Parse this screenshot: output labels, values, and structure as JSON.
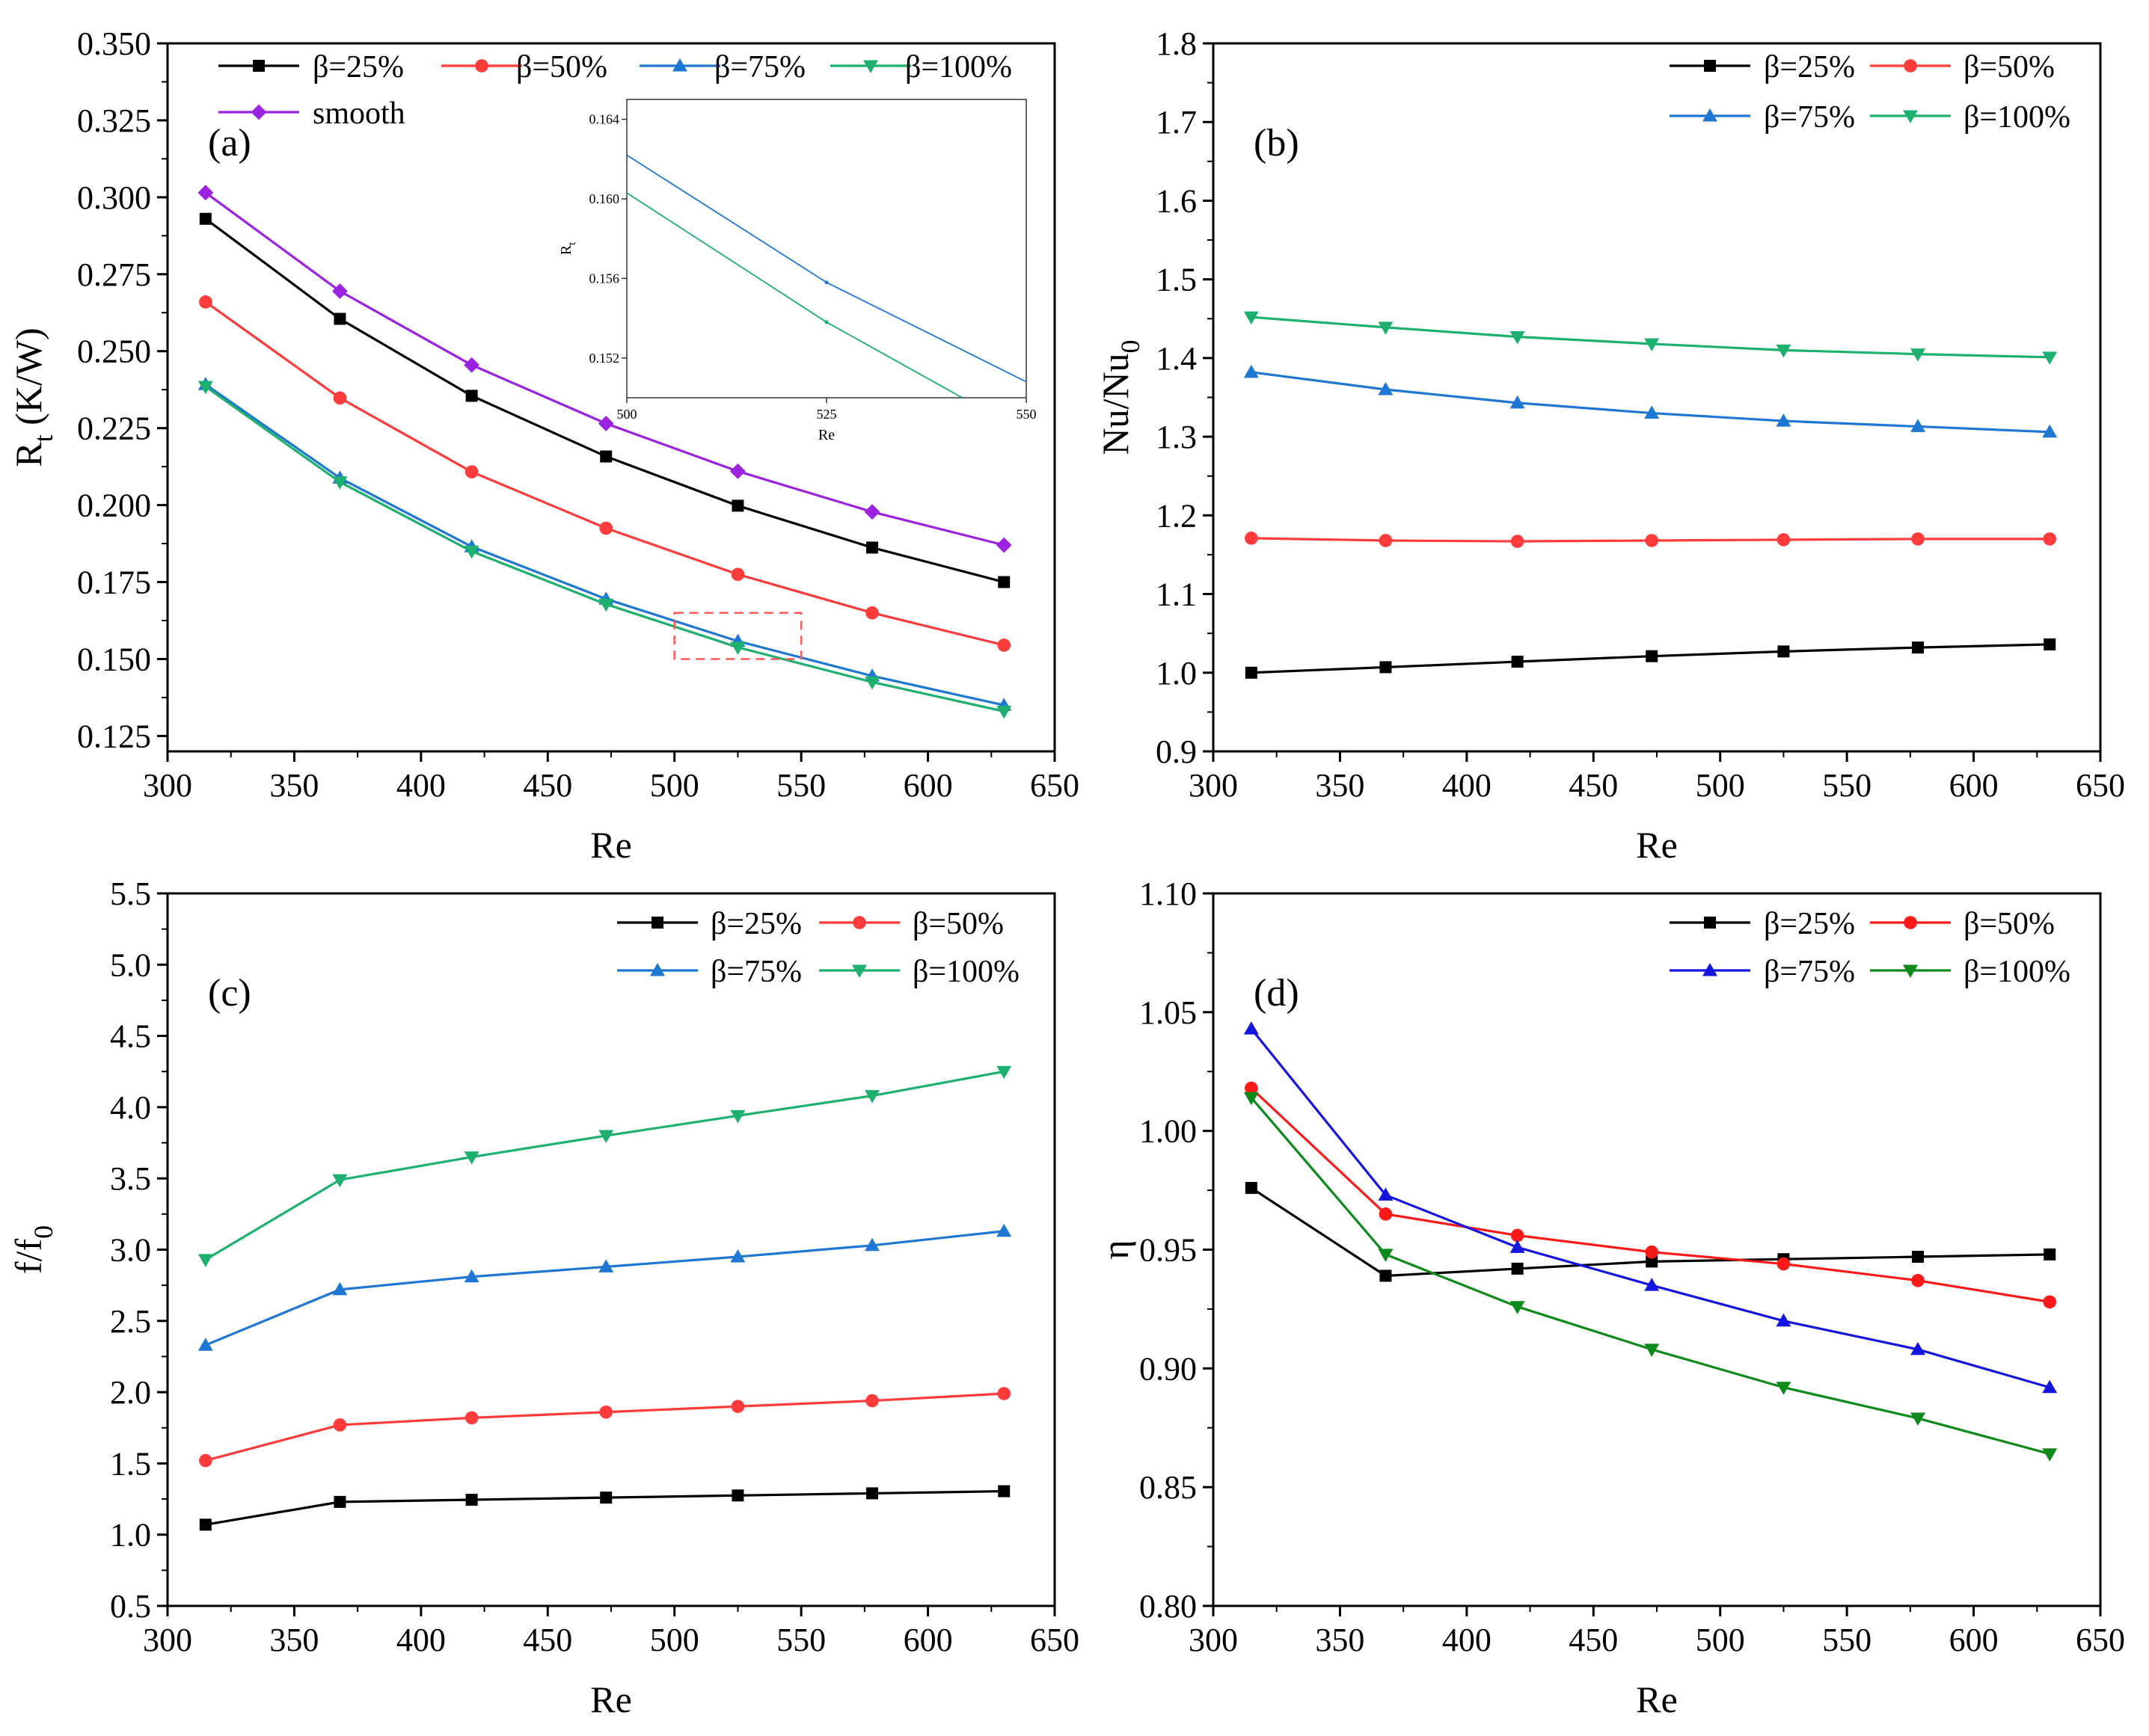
{
  "figure": {
    "charts": [
      {
        "id": "a",
        "type": "line",
        "panel_label": "(a)",
        "xlabel": "Re",
        "ylabel": "R_t (K/W)",
        "ylabel_main": "R",
        "ylabel_sub": "t",
        "ylabel_rest": " (K/W)",
        "xlim": [
          300,
          650
        ],
        "ylim": [
          0.12,
          0.35
        ],
        "xticks": [
          300,
          350,
          400,
          450,
          500,
          550,
          600,
          650
        ],
        "xtick_labels": [
          "300",
          "350",
          "400",
          "450",
          "500",
          "550",
          "600",
          "650"
        ],
        "yticks": [
          0.125,
          0.15,
          0.175,
          0.2,
          0.225,
          0.25,
          0.275,
          0.3,
          0.325,
          0.35
        ],
        "ytick_labels": [
          "0.125",
          "0.150",
          "0.175",
          "0.200",
          "0.225",
          "0.250",
          "0.275",
          "0.300",
          "0.325",
          "0.350"
        ],
        "x": [
          315,
          368,
          420,
          473,
          525,
          578,
          630
        ],
        "series": [
          {
            "name": "β=25%",
            "color": "#000000",
            "marker": "square",
            "values": [
              0.293,
              0.2605,
              0.2355,
              0.2158,
              0.1998,
              0.1862,
              0.175
            ]
          },
          {
            "name": "β=50%",
            "color": "#ff3b3b",
            "marker": "circle",
            "values": [
              0.266,
              0.2348,
              0.2108,
              0.1925,
              0.1775,
              0.165,
              0.1545
            ]
          },
          {
            "name": "β=75%",
            "color": "#1f77d4",
            "marker": "triangle-up",
            "values": [
              0.2392,
              0.2088,
              0.1865,
              0.1695,
              0.1558,
              0.1445,
              0.135
            ]
          },
          {
            "name": "β=100%",
            "color": "#1db06e",
            "marker": "triangle-down",
            "values": [
              0.2385,
              0.2075,
              0.185,
              0.1678,
              0.1538,
              0.1425,
              0.133
            ]
          },
          {
            "name": "smooth",
            "color": "#9b22e0",
            "marker": "diamond",
            "values": [
              0.3015,
              0.2695,
              0.2455,
              0.2265,
              0.211,
              0.1978,
              0.187
            ]
          }
        ],
        "inset": {
          "xlabel": "Re",
          "ylabel_main": "R",
          "ylabel_sub": "t",
          "xlim": [
            500,
            550
          ],
          "ylim": [
            0.15,
            0.165
          ],
          "xticks": [
            500,
            525,
            550
          ],
          "xtick_labels": [
            "500",
            "525",
            "550"
          ],
          "yticks": [
            0.152,
            0.156,
            0.16,
            0.164
          ],
          "ytick_labels": [
            "0.152",
            "0.156",
            "0.160",
            "0.164"
          ],
          "zoom_box": {
            "x": [
              500,
              550
            ],
            "y": [
              0.15,
              0.165
            ]
          },
          "series": [
            {
              "name": "β=75%",
              "color": "#1f77d4",
              "x": [
                500,
                525,
                550
              ],
              "values": [
                0.1622,
                0.1558,
                0.1508
              ]
            },
            {
              "name": "β=100%",
              "color": "#1db06e",
              "x": [
                500,
                525,
                542
              ],
              "values": [
                0.1603,
                0.1538,
                0.15
              ]
            }
          ]
        }
      },
      {
        "id": "b",
        "type": "line",
        "panel_label": "(b)",
        "xlabel": "Re",
        "ylabel_main": "Nu/Nu",
        "ylabel_sub": "0",
        "ylabel_rest": "",
        "xlim": [
          300,
          650
        ],
        "ylim": [
          0.9,
          1.8
        ],
        "xticks": [
          300,
          350,
          400,
          450,
          500,
          550,
          600,
          650
        ],
        "xtick_labels": [
          "300",
          "350",
          "400",
          "450",
          "500",
          "550",
          "600",
          "650"
        ],
        "yticks": [
          0.9,
          1.0,
          1.1,
          1.2,
          1.3,
          1.4,
          1.5,
          1.6,
          1.7,
          1.8
        ],
        "ytick_labels": [
          "0.9",
          "1.0",
          "1.1",
          "1.2",
          "1.3",
          "1.4",
          "1.5",
          "1.6",
          "1.7",
          "1.8"
        ],
        "x": [
          315,
          368,
          420,
          473,
          525,
          578,
          630
        ],
        "series": [
          {
            "name": "β=25%",
            "color": "#000000",
            "marker": "square",
            "values": [
              1.0,
              1.007,
              1.014,
              1.021,
              1.027,
              1.032,
              1.036
            ]
          },
          {
            "name": "β=50%",
            "color": "#ff3b3b",
            "marker": "circle",
            "values": [
              1.171,
              1.168,
              1.167,
              1.168,
              1.169,
              1.17,
              1.17
            ]
          },
          {
            "name": "β=75%",
            "color": "#1f77d4",
            "marker": "triangle-up",
            "values": [
              1.382,
              1.36,
              1.343,
              1.33,
              1.32,
              1.313,
              1.306
            ]
          },
          {
            "name": "β=100%",
            "color": "#1db06e",
            "marker": "triangle-down",
            "values": [
              1.452,
              1.439,
              1.427,
              1.418,
              1.41,
              1.405,
              1.401
            ]
          }
        ]
      },
      {
        "id": "c",
        "type": "line",
        "panel_label": "(c)",
        "xlabel": "Re",
        "ylabel_main": "f/f",
        "ylabel_sub": "0",
        "ylabel_rest": "",
        "xlim": [
          300,
          650
        ],
        "ylim": [
          0.5,
          5.5
        ],
        "xticks": [
          300,
          350,
          400,
          450,
          500,
          550,
          600,
          650
        ],
        "xtick_labels": [
          "300",
          "350",
          "400",
          "450",
          "500",
          "550",
          "600",
          "650"
        ],
        "yticks": [
          0.5,
          1.0,
          1.5,
          2.0,
          2.5,
          3.0,
          3.5,
          4.0,
          4.5,
          5.0,
          5.5
        ],
        "ytick_labels": [
          "0.5",
          "1.0",
          "1.5",
          "2.0",
          "2.5",
          "3.0",
          "3.5",
          "4.0",
          "4.5",
          "5.0",
          "5.5"
        ],
        "x": [
          315,
          368,
          420,
          473,
          525,
          578,
          630
        ],
        "series": [
          {
            "name": "β=25%",
            "color": "#000000",
            "marker": "square",
            "values": [
              1.07,
              1.23,
              1.245,
              1.26,
              1.275,
              1.29,
              1.305
            ]
          },
          {
            "name": "β=50%",
            "color": "#ff3b3b",
            "marker": "circle",
            "values": [
              1.52,
              1.77,
              1.82,
              1.86,
              1.9,
              1.94,
              1.99
            ]
          },
          {
            "name": "β=75%",
            "color": "#1f77d4",
            "marker": "triangle-up",
            "values": [
              2.33,
              2.72,
              2.81,
              2.88,
              2.95,
              3.03,
              3.13
            ]
          },
          {
            "name": "β=100%",
            "color": "#1db06e",
            "marker": "triangle-down",
            "values": [
              2.93,
              3.49,
              3.65,
              3.8,
              3.94,
              4.08,
              4.25
            ]
          }
        ]
      },
      {
        "id": "d",
        "type": "line",
        "panel_label": "(d)",
        "xlabel": "Re",
        "ylabel_main": "η",
        "ylabel_sub": "",
        "ylabel_rest": "",
        "xlim": [
          300,
          650
        ],
        "ylim": [
          0.8,
          1.1
        ],
        "xticks": [
          300,
          350,
          400,
          450,
          500,
          550,
          600,
          650
        ],
        "xtick_labels": [
          "300",
          "350",
          "400",
          "450",
          "500",
          "550",
          "600",
          "650"
        ],
        "yticks": [
          0.8,
          0.85,
          0.9,
          0.95,
          1.0,
          1.05,
          1.1
        ],
        "ytick_labels": [
          "0.80",
          "0.85",
          "0.90",
          "0.95",
          "1.00",
          "1.05",
          "1.10"
        ],
        "x": [
          315,
          368,
          420,
          473,
          525,
          578,
          630
        ],
        "series": [
          {
            "name": "β=25%",
            "color": "#000000",
            "marker": "square",
            "values": [
              0.976,
              0.939,
              0.942,
              0.945,
              0.946,
              0.947,
              0.948
            ]
          },
          {
            "name": "β=50%",
            "color": "#ff1a1a",
            "marker": "circle",
            "values": [
              1.018,
              0.965,
              0.956,
              0.949,
              0.944,
              0.937,
              0.928
            ]
          },
          {
            "name": "β=75%",
            "color": "#1515e0",
            "marker": "triangle-up",
            "values": [
              1.043,
              0.973,
              0.951,
              0.935,
              0.92,
              0.908,
              0.892
            ]
          },
          {
            "name": "β=100%",
            "color": "#0e8a1a",
            "marker": "triangle-down",
            "values": [
              1.014,
              0.948,
              0.926,
              0.908,
              0.892,
              0.879,
              0.864
            ]
          }
        ]
      }
    ]
  }
}
